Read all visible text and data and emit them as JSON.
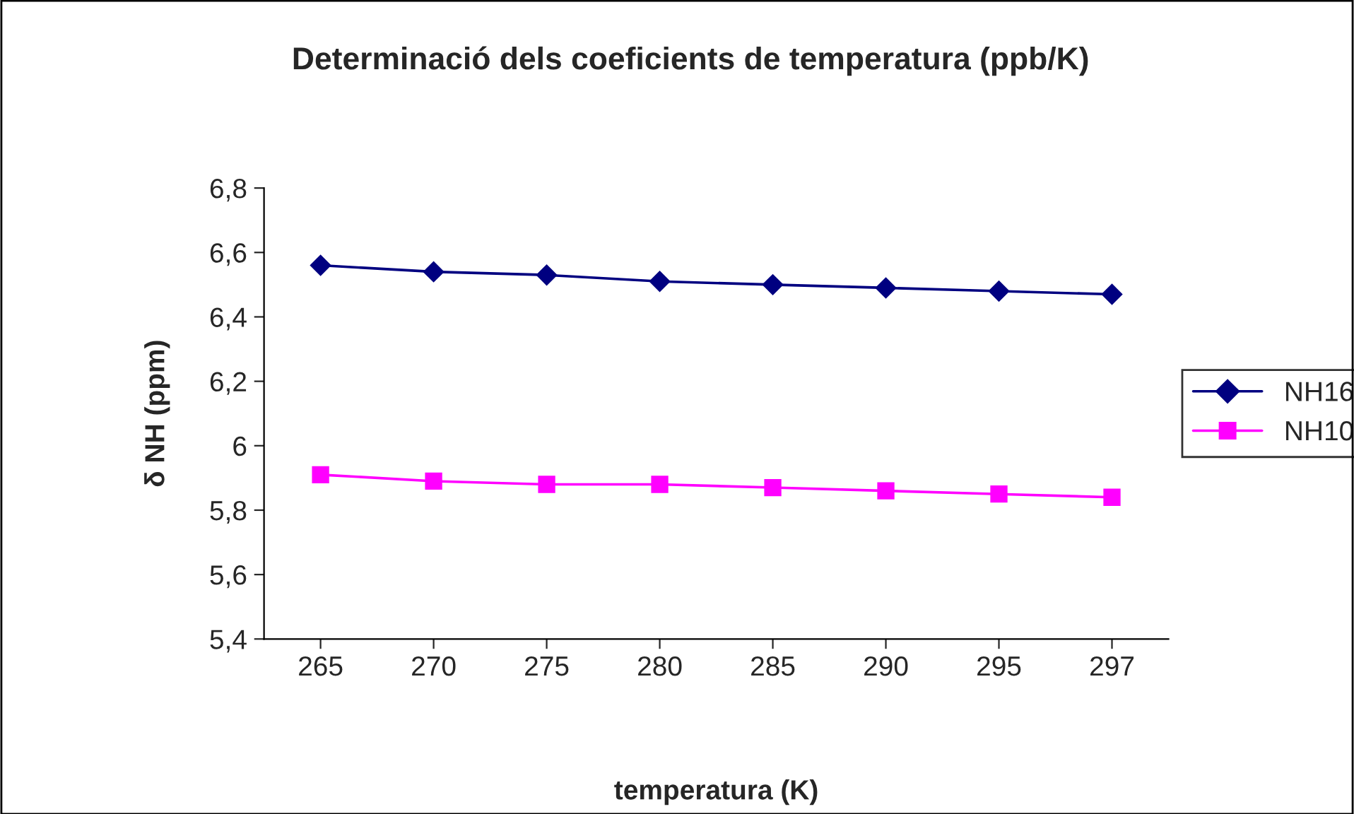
{
  "chart_data": {
    "type": "line",
    "title": "Determinació dels coeficients de temperatura (ppb/K)",
    "xlabel": "temperatura (K)",
    "ylabel": "δ NH (ppm)",
    "categories": [
      "265",
      "270",
      "275",
      "280",
      "285",
      "290",
      "295",
      "297"
    ],
    "series": [
      {
        "name": "NH16",
        "color": "#000080",
        "marker": "diamond",
        "values": [
          6.56,
          6.54,
          6.53,
          6.51,
          6.5,
          6.49,
          6.48,
          6.47
        ]
      },
      {
        "name": "NH10",
        "color": "#ff00ff",
        "marker": "square",
        "values": [
          5.91,
          5.89,
          5.88,
          5.88,
          5.87,
          5.86,
          5.85,
          5.84
        ]
      }
    ],
    "ylim": [
      5.4,
      6.8
    ],
    "yticks": [
      {
        "value": 5.4,
        "label": "5,4"
      },
      {
        "value": 5.6,
        "label": "5,6"
      },
      {
        "value": 5.8,
        "label": "5,8"
      },
      6,
      {
        "value": 6.2,
        "label": "6,2"
      },
      {
        "value": 6.4,
        "label": "6,4"
      },
      {
        "value": 6.6,
        "label": "6,6"
      },
      {
        "value": 6.8,
        "label": "6,8"
      }
    ],
    "grid": false,
    "legend": "right",
    "line_style": "solid"
  }
}
